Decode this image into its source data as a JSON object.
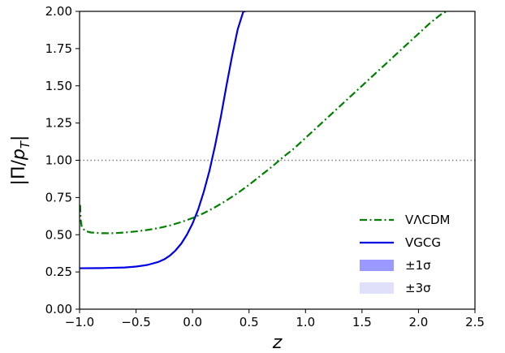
{
  "chart_data": {
    "type": "line",
    "xlabel": "z",
    "ylabel": "|Π/p_T|",
    "xlim": [
      -1.0,
      2.5
    ],
    "ylim": [
      0.0,
      2.0
    ],
    "xticks": [
      "−1.0",
      "−0.5",
      "0.0",
      "0.5",
      "1.0",
      "1.5",
      "2.0",
      "2.5"
    ],
    "yticks": [
      "0.00",
      "0.25",
      "0.50",
      "0.75",
      "1.00",
      "1.25",
      "1.50",
      "1.75",
      "2.00"
    ],
    "xtick_values": [
      -1.0,
      -0.5,
      0.0,
      0.5,
      1.0,
      1.5,
      2.0,
      2.5
    ],
    "ytick_values": [
      0.0,
      0.25,
      0.5,
      0.75,
      1.0,
      1.25,
      1.5,
      1.75,
      2.0
    ],
    "grid": false,
    "legend_position": "lower-right",
    "reference_line": {
      "y": 1.0,
      "style": "dotted",
      "color": "#808080"
    },
    "series": [
      {
        "name": "VΛCDM",
        "color": "#008000",
        "style": "dash-dot",
        "x": [
          -0.995,
          -0.99,
          -0.98,
          -0.95,
          -0.9,
          -0.8,
          -0.7,
          -0.6,
          -0.5,
          -0.4,
          -0.3,
          -0.2,
          -0.1,
          0.0,
          0.1,
          0.2,
          0.3,
          0.4,
          0.5,
          0.6,
          0.7,
          0.8,
          0.9,
          1.0,
          1.2,
          1.4,
          1.6,
          1.8,
          2.0,
          2.1,
          2.2,
          2.25
        ],
        "y": [
          0.7,
          0.6,
          0.55,
          0.525,
          0.515,
          0.51,
          0.51,
          0.515,
          0.522,
          0.532,
          0.545,
          0.562,
          0.585,
          0.612,
          0.645,
          0.685,
          0.73,
          0.78,
          0.835,
          0.895,
          0.955,
          1.02,
          1.08,
          1.15,
          1.29,
          1.43,
          1.57,
          1.71,
          1.85,
          1.92,
          1.98,
          2.0
        ]
      },
      {
        "name": "VGCG",
        "color": "#0000e6",
        "style": "solid",
        "x": [
          -1.0,
          -0.8,
          -0.6,
          -0.5,
          -0.4,
          -0.3,
          -0.25,
          -0.2,
          -0.15,
          -0.1,
          -0.05,
          0.0,
          0.05,
          0.1,
          0.15,
          0.2,
          0.25,
          0.3,
          0.35,
          0.4,
          0.45,
          0.47
        ],
        "y": [
          0.275,
          0.276,
          0.28,
          0.286,
          0.297,
          0.318,
          0.335,
          0.36,
          0.395,
          0.44,
          0.5,
          0.575,
          0.67,
          0.79,
          0.93,
          1.1,
          1.29,
          1.5,
          1.7,
          1.88,
          2.0,
          2.0
        ]
      }
    ],
    "bands": [
      {
        "name": "±1σ",
        "color": "#9999ff"
      },
      {
        "name": "±3σ",
        "color": "#e0e0fa"
      }
    ]
  }
}
